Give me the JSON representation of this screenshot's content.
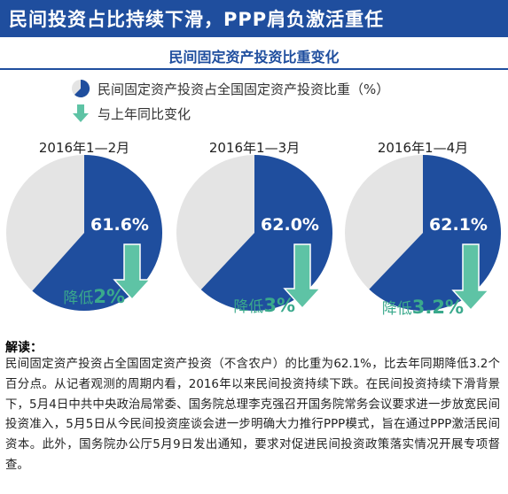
{
  "banner": {
    "title": "民间投资占比持续下滑，PPP肩负激活重任"
  },
  "subtitle": "民间固定资产投资比重变化",
  "legend": {
    "share_label": "民间固定资产投资占全国固定资产投资比重（%）",
    "change_label": "与上年同比变化"
  },
  "colors": {
    "blue": "#1f4e9e",
    "grey": "#e4e4e4",
    "green": "#5ec3a5",
    "arrow_text": "#3aa98c"
  },
  "chart_data": {
    "type": "pie",
    "unit": "%",
    "periods": [
      {
        "title": "2016年1—2月",
        "share": 61.6,
        "share_label": "61.6%",
        "change_prefix": "降低",
        "change_value": "2%",
        "change": -2.0
      },
      {
        "title": "2016年1—3月",
        "share": 62.0,
        "share_label": "62.0%",
        "change_prefix": "降低",
        "change_value": "3%",
        "change": -3.0
      },
      {
        "title": "2016年1—4月",
        "share": 62.1,
        "share_label": "62.1%",
        "change_prefix": "降低",
        "change_value": "3.2%",
        "change": -3.2
      }
    ]
  },
  "notes": {
    "heading": "解读：",
    "body": "民间固定资产投资占全国固定资产投资（不含农户）的比重为62.1%，比去年同期降低3.2个百分点。从记者观测的周期内看，2016年以来民间投资持续下跌。在民间投资持续下滑背景下，5月4日中共中央政治局常委、国务院总理李克强召开国务院常务会议要求进一步放宽民间投资准入，5月5日从今民间投资座谈会进一步明确大力推行PPP模式，旨在通过PPP激活民间资本。此外，国务院办公厅5月9日发出通知，要求对促进民间投资政策落实情况开展专项督查。"
  }
}
